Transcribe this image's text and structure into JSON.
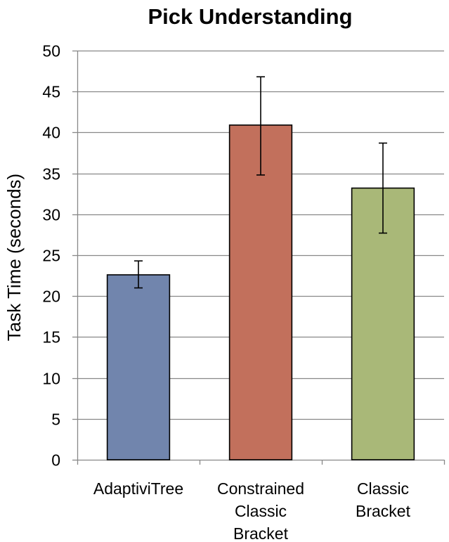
{
  "chart_data": {
    "type": "bar",
    "title": "Pick Understanding",
    "xlabel": "",
    "ylabel": "Task Time (seconds)",
    "ylim": [
      0,
      50
    ],
    "yticks": [
      0,
      5,
      10,
      15,
      20,
      25,
      30,
      35,
      40,
      45,
      50
    ],
    "grid": true,
    "categories": [
      [
        "AdaptiviTree"
      ],
      [
        "Constrained",
        "Classic",
        "Bracket"
      ],
      [
        "Classic",
        "Bracket"
      ]
    ],
    "values": [
      22.6,
      40.9,
      33.2
    ],
    "error_low": [
      21.0,
      34.8,
      27.7
    ],
    "error_high": [
      24.3,
      46.8,
      38.7
    ],
    "colors": [
      "#7185ad",
      "#c2705c",
      "#a9b878"
    ]
  }
}
